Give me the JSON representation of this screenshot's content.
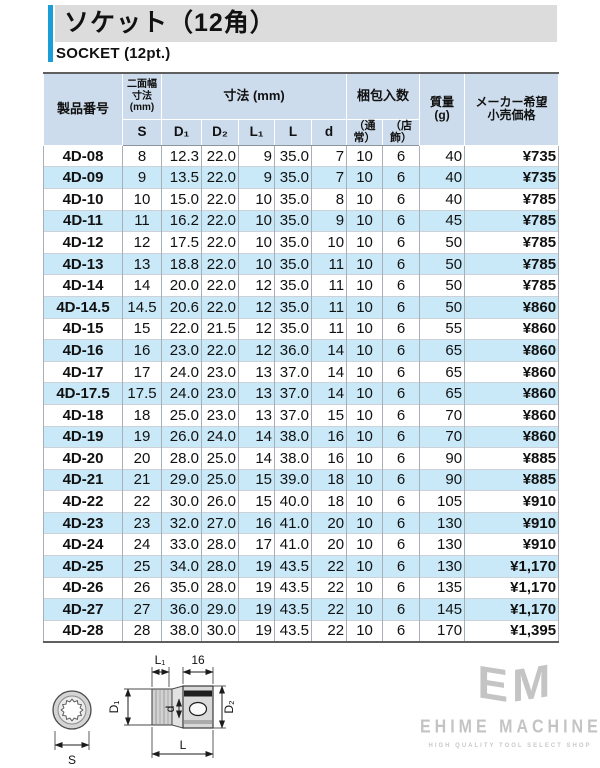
{
  "page": {
    "title": "ソケット（12角）",
    "subtitle": "SOCKET (12pt.)"
  },
  "colors": {
    "accent": "#1b9ed8",
    "title_bg": "#dcdcdc",
    "header_bg": "#cddcec",
    "row_alt": "#c9e9f8",
    "border": "#a7b0b8",
    "text": "#111111",
    "logo": "#c4c4c4"
  },
  "table": {
    "header": {
      "product": "製品番号",
      "width_l1": "二面幅",
      "width_l2": "寸法",
      "width_l3": "(mm)",
      "dims": "寸法 (mm)",
      "pack": "梱包入数",
      "mass_l1": "質量",
      "mass_l2": "(g)",
      "price_l1": "メーカー希望",
      "price_l2": "小売価格",
      "sub": {
        "s": "S",
        "d1": "D₁",
        "d2": "D₂",
        "l1": "L₁",
        "l": "L",
        "d": "d",
        "pack_normal": "（通常）",
        "pack_display": "（店飾）"
      }
    },
    "rows": [
      {
        "model": "4D-08",
        "s": "8",
        "d1": "12.3",
        "d2": "22.0",
        "l1": "9",
        "l": "35.0",
        "d": "7",
        "pack_normal": "10",
        "pack_display": "6",
        "mass": "40",
        "price": "¥735"
      },
      {
        "model": "4D-09",
        "s": "9",
        "d1": "13.5",
        "d2": "22.0",
        "l1": "9",
        "l": "35.0",
        "d": "7",
        "pack_normal": "10",
        "pack_display": "6",
        "mass": "40",
        "price": "¥735"
      },
      {
        "model": "4D-10",
        "s": "10",
        "d1": "15.0",
        "d2": "22.0",
        "l1": "10",
        "l": "35.0",
        "d": "8",
        "pack_normal": "10",
        "pack_display": "6",
        "mass": "40",
        "price": "¥785"
      },
      {
        "model": "4D-11",
        "s": "11",
        "d1": "16.2",
        "d2": "22.0",
        "l1": "10",
        "l": "35.0",
        "d": "9",
        "pack_normal": "10",
        "pack_display": "6",
        "mass": "45",
        "price": "¥785"
      },
      {
        "model": "4D-12",
        "s": "12",
        "d1": "17.5",
        "d2": "22.0",
        "l1": "10",
        "l": "35.0",
        "d": "10",
        "pack_normal": "10",
        "pack_display": "6",
        "mass": "50",
        "price": "¥785"
      },
      {
        "model": "4D-13",
        "s": "13",
        "d1": "18.8",
        "d2": "22.0",
        "l1": "10",
        "l": "35.0",
        "d": "11",
        "pack_normal": "10",
        "pack_display": "6",
        "mass": "50",
        "price": "¥785"
      },
      {
        "model": "4D-14",
        "s": "14",
        "d1": "20.0",
        "d2": "22.0",
        "l1": "12",
        "l": "35.0",
        "d": "11",
        "pack_normal": "10",
        "pack_display": "6",
        "mass": "50",
        "price": "¥785"
      },
      {
        "model": "4D-14.5",
        "s": "14.5",
        "d1": "20.6",
        "d2": "22.0",
        "l1": "12",
        "l": "35.0",
        "d": "11",
        "pack_normal": "10",
        "pack_display": "6",
        "mass": "50",
        "price": "¥860"
      },
      {
        "model": "4D-15",
        "s": "15",
        "d1": "22.0",
        "d2": "21.5",
        "l1": "12",
        "l": "35.0",
        "d": "11",
        "pack_normal": "10",
        "pack_display": "6",
        "mass": "55",
        "price": "¥860"
      },
      {
        "model": "4D-16",
        "s": "16",
        "d1": "23.0",
        "d2": "22.0",
        "l1": "12",
        "l": "36.0",
        "d": "14",
        "pack_normal": "10",
        "pack_display": "6",
        "mass": "65",
        "price": "¥860"
      },
      {
        "model": "4D-17",
        "s": "17",
        "d1": "24.0",
        "d2": "23.0",
        "l1": "13",
        "l": "37.0",
        "d": "14",
        "pack_normal": "10",
        "pack_display": "6",
        "mass": "65",
        "price": "¥860"
      },
      {
        "model": "4D-17.5",
        "s": "17.5",
        "d1": "24.0",
        "d2": "23.0",
        "l1": "13",
        "l": "37.0",
        "d": "14",
        "pack_normal": "10",
        "pack_display": "6",
        "mass": "65",
        "price": "¥860"
      },
      {
        "model": "4D-18",
        "s": "18",
        "d1": "25.0",
        "d2": "23.0",
        "l1": "13",
        "l": "37.0",
        "d": "15",
        "pack_normal": "10",
        "pack_display": "6",
        "mass": "70",
        "price": "¥860"
      },
      {
        "model": "4D-19",
        "s": "19",
        "d1": "26.0",
        "d2": "24.0",
        "l1": "14",
        "l": "38.0",
        "d": "16",
        "pack_normal": "10",
        "pack_display": "6",
        "mass": "70",
        "price": "¥860"
      },
      {
        "model": "4D-20",
        "s": "20",
        "d1": "28.0",
        "d2": "25.0",
        "l1": "14",
        "l": "38.0",
        "d": "16",
        "pack_normal": "10",
        "pack_display": "6",
        "mass": "90",
        "price": "¥885"
      },
      {
        "model": "4D-21",
        "s": "21",
        "d1": "29.0",
        "d2": "25.0",
        "l1": "15",
        "l": "39.0",
        "d": "18",
        "pack_normal": "10",
        "pack_display": "6",
        "mass": "90",
        "price": "¥885"
      },
      {
        "model": "4D-22",
        "s": "22",
        "d1": "30.0",
        "d2": "26.0",
        "l1": "15",
        "l": "40.0",
        "d": "18",
        "pack_normal": "10",
        "pack_display": "6",
        "mass": "105",
        "price": "¥910"
      },
      {
        "model": "4D-23",
        "s": "23",
        "d1": "32.0",
        "d2": "27.0",
        "l1": "16",
        "l": "41.0",
        "d": "20",
        "pack_normal": "10",
        "pack_display": "6",
        "mass": "130",
        "price": "¥910"
      },
      {
        "model": "4D-24",
        "s": "24",
        "d1": "33.0",
        "d2": "28.0",
        "l1": "17",
        "l": "41.0",
        "d": "20",
        "pack_normal": "10",
        "pack_display": "6",
        "mass": "130",
        "price": "¥910"
      },
      {
        "model": "4D-25",
        "s": "25",
        "d1": "34.0",
        "d2": "28.0",
        "l1": "19",
        "l": "43.5",
        "d": "22",
        "pack_normal": "10",
        "pack_display": "6",
        "mass": "130",
        "price": "¥1,170"
      },
      {
        "model": "4D-26",
        "s": "26",
        "d1": "35.0",
        "d2": "28.0",
        "l1": "19",
        "l": "43.5",
        "d": "22",
        "pack_normal": "10",
        "pack_display": "6",
        "mass": "135",
        "price": "¥1,170"
      },
      {
        "model": "4D-27",
        "s": "27",
        "d1": "36.0",
        "d2": "29.0",
        "l1": "19",
        "l": "43.5",
        "d": "22",
        "pack_normal": "10",
        "pack_display": "6",
        "mass": "145",
        "price": "¥1,170"
      },
      {
        "model": "4D-28",
        "s": "28",
        "d1": "38.0",
        "d2": "30.0",
        "l1": "19",
        "l": "43.5",
        "d": "22",
        "pack_normal": "10",
        "pack_display": "6",
        "mass": "170",
        "price": "¥1,395"
      }
    ]
  },
  "drawing": {
    "labels": {
      "l1": "L₁",
      "s16": "16",
      "d1": "D₁",
      "d": "d",
      "d2": "D₂",
      "l": "L",
      "s": "S"
    }
  },
  "logo": {
    "monogram_e": "E",
    "monogram_m": "M",
    "name": "EHIME MACHINE",
    "tagline": "HIGH QUALITY TOOL SELECT SHOP"
  }
}
